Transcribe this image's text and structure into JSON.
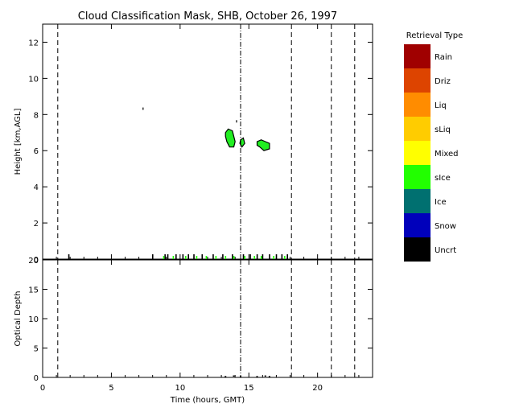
{
  "chart_data": [
    {
      "type": "heatmap",
      "title": "Cloud Classification Mask, SHB, October 26, 1997",
      "xlabel": "",
      "ylabel": "Height [km,AGL]",
      "xlim": [
        0,
        24
      ],
      "ylim": [
        0,
        13
      ],
      "yticks": [
        "0",
        "2",
        "4",
        "6",
        "8",
        "10",
        "12"
      ],
      "vertical_lines": [
        {
          "x": 1.1,
          "style": "dashed"
        },
        {
          "x": 14.4,
          "style": "dashdot"
        },
        {
          "x": 18.1,
          "style": "dashed"
        },
        {
          "x": 21.0,
          "style": "dashed"
        },
        {
          "x": 22.7,
          "style": "dashed"
        }
      ],
      "regions": [
        {
          "class": "sIce",
          "color": "#22ee22",
          "outline": [
            [
              13.3,
              7.0
            ],
            [
              13.5,
              7.2
            ],
            [
              13.8,
              7.1
            ],
            [
              13.9,
              6.8
            ],
            [
              14.0,
              6.5
            ],
            [
              13.9,
              6.2
            ],
            [
              13.6,
              6.2
            ],
            [
              13.4,
              6.5
            ],
            [
              13.3,
              6.8
            ]
          ]
        },
        {
          "class": "sIce",
          "color": "#22ee22",
          "outline": [
            [
              14.4,
              6.6
            ],
            [
              14.6,
              6.7
            ],
            [
              14.7,
              6.4
            ],
            [
              14.5,
              6.2
            ],
            [
              14.35,
              6.4
            ]
          ]
        },
        {
          "class": "sIce",
          "color": "#22ee22",
          "outline": [
            [
              15.6,
              6.5
            ],
            [
              15.9,
              6.6
            ],
            [
              16.2,
              6.5
            ],
            [
              16.5,
              6.4
            ],
            [
              16.5,
              6.1
            ],
            [
              16.1,
              6.0
            ],
            [
              15.8,
              6.2
            ],
            [
              15.6,
              6.3
            ]
          ]
        }
      ],
      "isolated_points": [
        {
          "class": "Uncrt",
          "x": 7.3,
          "y": 8.3
        },
        {
          "class": "Uncrt",
          "x": 14.1,
          "y": 7.6
        }
      ],
      "surface_marks": [
        {
          "x": [
            1.9,
            8.0,
            8.9,
            9.1,
            9.7,
            10.2,
            10.6,
            11.0,
            11.6,
            12.4,
            13.1,
            13.8,
            14.6,
            15.1,
            15.6,
            16.0,
            16.5,
            17.0,
            17.4,
            17.8
          ],
          "class": "Uncrt"
        },
        {
          "x": [
            8.8,
            9.5,
            10.4,
            11.2,
            11.9,
            12.6,
            13.3,
            13.9,
            14.7,
            15.4,
            15.9,
            16.8,
            17.6
          ],
          "class": "sIce"
        }
      ]
    },
    {
      "type": "line",
      "title": "",
      "xlabel": "Time (hours, GMT)",
      "ylabel": "Optical Depth",
      "xlim": [
        0,
        24
      ],
      "ylim": [
        0,
        20
      ],
      "xticks": [
        "0",
        "5",
        "10",
        "15",
        "20"
      ],
      "yticks": [
        "0",
        "5",
        "10",
        "15",
        "20"
      ],
      "series": [
        {
          "values": [
            [
              13.3,
              0.1
            ],
            [
              13.9,
              0.2
            ],
            [
              14.4,
              0.1
            ],
            [
              15.6,
              0.1
            ],
            [
              16.2,
              0.2
            ],
            [
              16.5,
              0.1
            ]
          ]
        }
      ]
    }
  ],
  "legend": {
    "title": "Retrieval Type",
    "items": [
      {
        "label": "Rain",
        "color": "#a00000"
      },
      {
        "label": "Driz",
        "color": "#dd4400"
      },
      {
        "label": "Liq",
        "color": "#ff8c00"
      },
      {
        "label": "sLiq",
        "color": "#ffcc00"
      },
      {
        "label": "Mixed",
        "color": "#ffff00"
      },
      {
        "label": "sIce",
        "color": "#22ff00"
      },
      {
        "label": "Ice",
        "color": "#007070"
      },
      {
        "label": "Snow",
        "color": "#0000bb"
      },
      {
        "label": "Uncrt",
        "color": "#000000"
      }
    ]
  }
}
